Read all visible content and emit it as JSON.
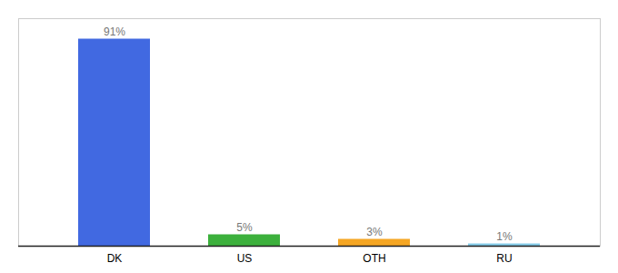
{
  "chart_data": {
    "type": "bar",
    "categories": [
      "DK",
      "US",
      "OTH",
      "RU"
    ],
    "values": [
      91,
      5,
      3,
      1
    ],
    "value_labels": [
      "91%",
      "5%",
      "3%",
      "1%"
    ],
    "colors": [
      "#4169E1",
      "#3CB03C",
      "#F5A623",
      "#87CEEB"
    ],
    "ylim": [
      0,
      100
    ],
    "grid": false,
    "data_labels": true,
    "tick_labels": "x"
  }
}
